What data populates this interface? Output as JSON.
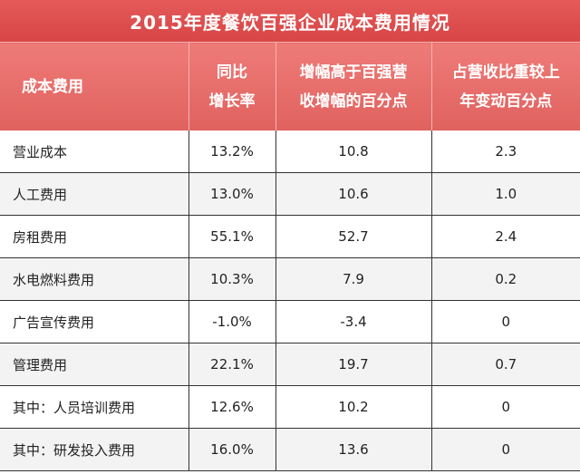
{
  "title": "2015年度餐饮百强企业成本费用情况",
  "headers": [
    {
      "line1": "成本费用",
      "line2": ""
    },
    {
      "line1": "同比",
      "line2": "增长率"
    },
    {
      "line1": "增幅高于百强营",
      "line2": "收增幅的百分点"
    },
    {
      "line1": "占营收比重较上",
      "line2": "年变动百分点"
    }
  ],
  "rows": [
    {
      "name": "营业成本",
      "growth": "13.2%",
      "diff": "10.8",
      "share_change": "2.3"
    },
    {
      "name": "人工费用",
      "growth": "13.0%",
      "diff": "10.6",
      "share_change": "1.0"
    },
    {
      "name": "房租费用",
      "growth": "55.1%",
      "diff": "52.7",
      "share_change": "2.4"
    },
    {
      "name": "水电燃料费用",
      "growth": "10.3%",
      "diff": "7.9",
      "share_change": "0.2"
    },
    {
      "name": "广告宣传费用",
      "growth": "-1.0%",
      "diff": "-3.4",
      "share_change": "0"
    },
    {
      "name": "管理费用",
      "growth": "22.1%",
      "diff": "19.7",
      "share_change": "0.7"
    },
    {
      "name": "其中：人员培训费用",
      "growth": "12.6%",
      "diff": "10.2",
      "share_change": "0"
    },
    {
      "name": "其中：研发投入费用",
      "growth": "16.0%",
      "diff": "13.6",
      "share_change": "0"
    }
  ]
}
